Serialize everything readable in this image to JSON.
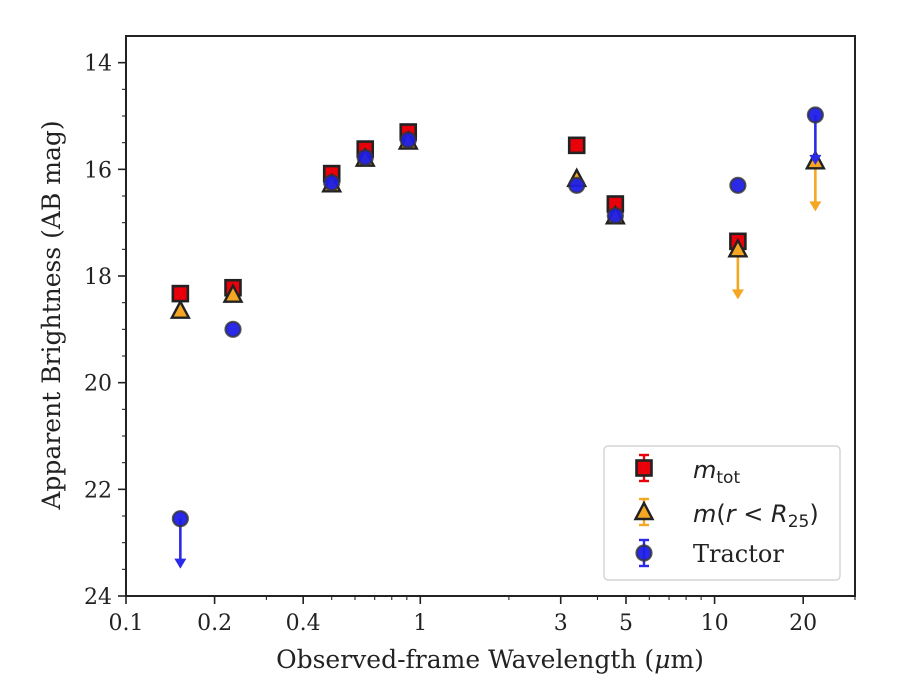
{
  "chart_data": {
    "type": "scatter",
    "xlabel_pre": "Observed-frame Wavelength (",
    "xlabel_mu": "μ",
    "xlabel_post": "m)",
    "ylabel": "Apparent Brightness (AB mag)",
    "x_scale": "log",
    "xlim": [
      0.1,
      30
    ],
    "ylim": [
      24,
      13.5
    ],
    "y_inverted": true,
    "grid": false,
    "legend_position": "lower-right",
    "x_ticks": [
      {
        "value": 0.1,
        "label": "0.1"
      },
      {
        "value": 0.2,
        "label": "0.2"
      },
      {
        "value": 0.4,
        "label": "0.4"
      },
      {
        "value": 1,
        "label": "1"
      },
      {
        "value": 3,
        "label": "3"
      },
      {
        "value": 5,
        "label": "5"
      },
      {
        "value": 10,
        "label": "10"
      },
      {
        "value": 20,
        "label": "20"
      }
    ],
    "y_ticks": [
      {
        "value": 14,
        "label": "14"
      },
      {
        "value": 16,
        "label": "16"
      },
      {
        "value": 18,
        "label": "18"
      },
      {
        "value": 20,
        "label": "20"
      },
      {
        "value": 22,
        "label": "22"
      },
      {
        "value": 24,
        "label": "24"
      }
    ],
    "series": [
      {
        "key": "mtot",
        "legend_main": "m",
        "legend_sub": "tot",
        "marker": "square",
        "color": "#e8000b",
        "errcolor": "#e8000b",
        "points": [
          {
            "x": 0.153,
            "y": 18.33
          },
          {
            "x": 0.231,
            "y": 18.22
          },
          {
            "x": 0.5,
            "y": 16.08
          },
          {
            "x": 0.65,
            "y": 15.62
          },
          {
            "x": 0.91,
            "y": 15.3
          },
          {
            "x": 3.4,
            "y": 15.55
          },
          {
            "x": 4.6,
            "y": 16.65
          },
          {
            "x": 12.0,
            "y": 17.35
          }
        ]
      },
      {
        "key": "mr25",
        "legend_main": "m",
        "legend_open": "(",
        "legend_r": "r",
        "legend_lt": " < ",
        "legend_R": "R",
        "legend_sub": "25",
        "legend_close": ")",
        "marker": "triangle",
        "color": "#f5a623",
        "errcolor": "#f5a623",
        "points": [
          {
            "x": 0.153,
            "y": 18.65
          },
          {
            "x": 0.231,
            "y": 18.35
          },
          {
            "x": 0.5,
            "y": 16.28
          },
          {
            "x": 0.65,
            "y": 15.8
          },
          {
            "x": 0.91,
            "y": 15.48
          },
          {
            "x": 3.4,
            "y": 16.18
          },
          {
            "x": 4.6,
            "y": 16.88
          },
          {
            "x": 12.0,
            "y": 17.5,
            "upper_limit": true
          },
          {
            "x": 22.0,
            "y": 15.85,
            "upper_limit": true
          }
        ]
      },
      {
        "key": "tractor",
        "legend_label": "Tractor",
        "marker": "circle",
        "color": "#1d1de6",
        "errcolor": "#2a2ae8",
        "points": [
          {
            "x": 0.153,
            "y": 22.55,
            "upper_limit": true
          },
          {
            "x": 0.231,
            "y": 19.0
          },
          {
            "x": 0.5,
            "y": 16.25
          },
          {
            "x": 0.65,
            "y": 15.78
          },
          {
            "x": 0.91,
            "y": 15.45
          },
          {
            "x": 3.4,
            "y": 16.3
          },
          {
            "x": 4.6,
            "y": 16.87
          },
          {
            "x": 12.0,
            "y": 16.3
          },
          {
            "x": 22.0,
            "y": 14.98,
            "upper_limit": true
          }
        ]
      }
    ]
  }
}
